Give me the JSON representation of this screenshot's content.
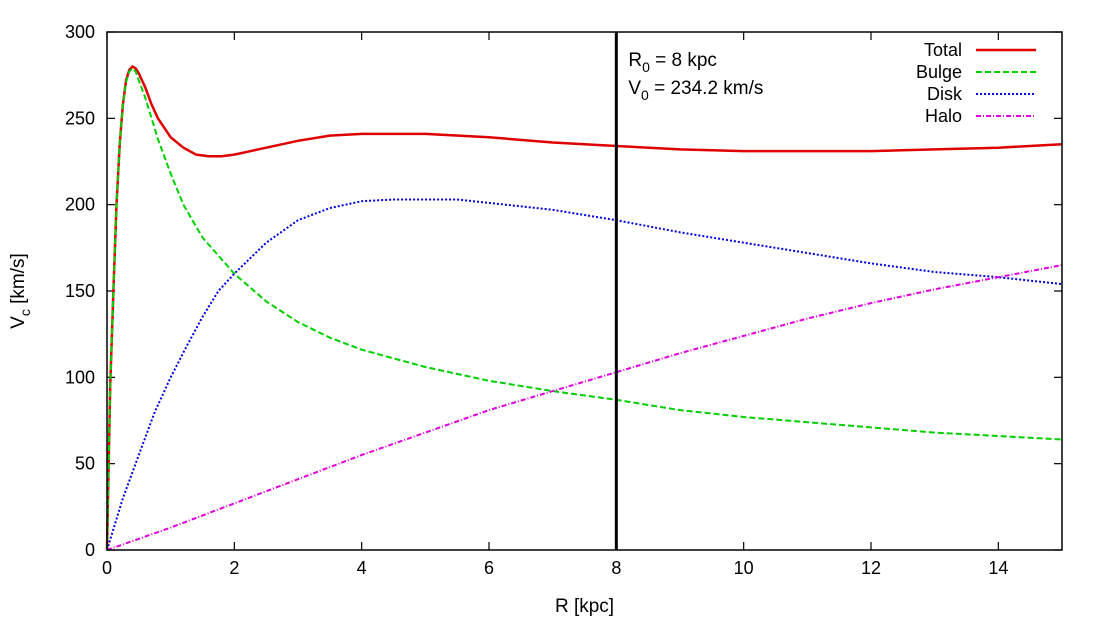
{
  "chart_data": {
    "type": "line",
    "title": "",
    "xlabel": "R [kpc]",
    "ylabel_main": "V",
    "ylabel_sub": "c",
    "ylabel_unit": " [km/s]",
    "xlim": [
      0,
      15
    ],
    "ylim": [
      0,
      300
    ],
    "x_ticks": [
      0,
      2,
      4,
      6,
      8,
      10,
      12,
      14
    ],
    "x_tick_labels": [
      "0",
      "2",
      "4",
      "6",
      "8",
      "10",
      "12",
      "14"
    ],
    "y_ticks": [
      0,
      50,
      100,
      150,
      200,
      250,
      300
    ],
    "y_tick_labels": [
      "0",
      "50",
      "100",
      "150",
      "200",
      "250",
      "300"
    ],
    "grid": false,
    "legend_position": "top-right",
    "vertical_line": {
      "x": 8,
      "color": "#000000"
    },
    "annotation": {
      "line1_main": "R",
      "line1_sub": "0",
      "line1_rest": " = 8 kpc",
      "line2_main": "V",
      "line2_sub": "0",
      "line2_rest": " = 234.2 km/s"
    },
    "series": [
      {
        "name": "Total",
        "color": "#e00000",
        "dash": "solid",
        "x": [
          0,
          0.05,
          0.1,
          0.15,
          0.2,
          0.25,
          0.3,
          0.35,
          0.4,
          0.45,
          0.5,
          0.6,
          0.7,
          0.8,
          1.0,
          1.2,
          1.4,
          1.6,
          1.8,
          2.0,
          2.5,
          3.0,
          3.5,
          4.0,
          4.5,
          5.0,
          6.0,
          7.0,
          8.0,
          9.0,
          10.0,
          11.0,
          12.0,
          13.0,
          14.0,
          15.0
        ],
        "y": [
          0,
          95,
          150,
          200,
          235,
          258,
          272,
          278,
          280,
          279,
          276,
          268,
          258,
          250,
          239,
          233,
          229,
          228,
          228,
          229,
          233,
          237,
          240,
          241,
          241,
          241,
          239,
          236,
          234,
          232,
          231,
          231,
          231,
          232,
          233,
          235
        ]
      },
      {
        "name": "Bulge",
        "color": "#00d000",
        "dash": "dashed",
        "x": [
          0,
          0.05,
          0.1,
          0.15,
          0.2,
          0.25,
          0.3,
          0.35,
          0.4,
          0.45,
          0.5,
          0.6,
          0.7,
          0.8,
          1.0,
          1.2,
          1.5,
          2.0,
          2.5,
          3.0,
          3.5,
          4.0,
          5.0,
          6.0,
          7.0,
          8.0,
          9.0,
          10.0,
          11.0,
          12.0,
          13.0,
          14.0,
          15.0
        ],
        "y": [
          0,
          95,
          150,
          200,
          235,
          258,
          271,
          277,
          279,
          277,
          272,
          262,
          250,
          238,
          218,
          200,
          181,
          160,
          144,
          132,
          123,
          116,
          106,
          98,
          92,
          87,
          81,
          77,
          74,
          71,
          68,
          66,
          64
        ]
      },
      {
        "name": "Disk",
        "color": "#0000e0",
        "dash": "dotted",
        "x": [
          0,
          0.25,
          0.5,
          0.75,
          1.0,
          1.25,
          1.5,
          1.75,
          2.0,
          2.5,
          3.0,
          3.5,
          4.0,
          4.5,
          5.0,
          5.5,
          6.0,
          7.0,
          8.0,
          9.0,
          10.0,
          11.0,
          12.0,
          13.0,
          14.0,
          15.0
        ],
        "y": [
          0,
          30,
          55,
          80,
          100,
          118,
          135,
          150,
          160,
          178,
          191,
          198,
          202,
          203,
          203,
          203,
          201,
          197,
          191,
          184,
          178,
          172,
          166,
          161,
          158,
          154
        ]
      },
      {
        "name": "Halo",
        "color": "#e000e0",
        "dash": "dashdot",
        "x": [
          0,
          1,
          2,
          3,
          4,
          5,
          6,
          7,
          8,
          9,
          10,
          11,
          12,
          13,
          14,
          15
        ],
        "y": [
          0,
          13,
          27,
          41,
          55,
          68,
          81,
          92,
          103,
          114,
          124,
          134,
          143,
          151,
          158,
          165
        ]
      }
    ]
  }
}
